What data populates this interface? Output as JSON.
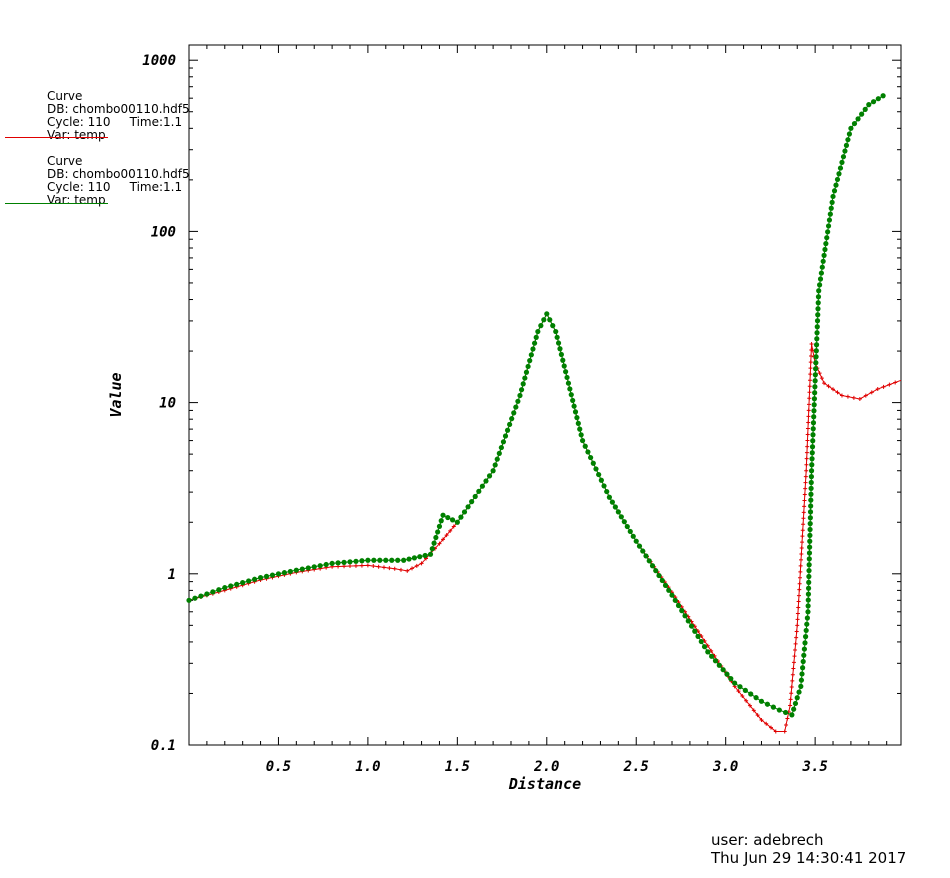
{
  "legend": [
    {
      "name": "Curve",
      "db": "DB: chombo00110.hdf5",
      "cycle": "Cycle: 110",
      "time": "Time:1.1",
      "var": "Var: temp",
      "color": "#e00000"
    },
    {
      "name": "Curve",
      "db": "DB: chombo00110.hdf5",
      "cycle": "Cycle: 110",
      "time": "Time:1.1",
      "var": "Var: temp",
      "color": "#008000"
    }
  ],
  "footer": {
    "user": "user: adebrech",
    "date": "Thu Jun 29 14:30:41 2017"
  },
  "chart_data": {
    "type": "line",
    "xlabel": "Distance",
    "ylabel": "Value",
    "xlim": [
      0.0,
      3.98
    ],
    "ylim": [
      0.1,
      1200
    ],
    "yscale": "log",
    "xticks": [
      0.5,
      1.0,
      1.5,
      2.0,
      2.5,
      3.0,
      3.5
    ],
    "xtick_labels": [
      "0.5",
      "1.0",
      "1.5",
      "2.0",
      "2.5",
      "3.0",
      "3.5"
    ],
    "yticks": [
      0.1,
      1,
      10,
      100,
      1000
    ],
    "ytick_labels": [
      "0.1",
      "1",
      "10",
      "100",
      "1000"
    ],
    "grid": false,
    "series": [
      {
        "color": "#e00000",
        "marker": "cross",
        "x": [
          0.0,
          0.2,
          0.4,
          0.6,
          0.8,
          1.0,
          1.15,
          1.22,
          1.3,
          1.4,
          1.5,
          1.7,
          1.85,
          1.95,
          2.0,
          2.05,
          2.2,
          2.35,
          2.5,
          2.7,
          2.9,
          3.05,
          3.2,
          3.28,
          3.33,
          3.36,
          3.4,
          3.45,
          3.48,
          3.5,
          3.55,
          3.65,
          3.75,
          3.85,
          3.98
        ],
        "y": [
          0.7,
          0.8,
          0.92,
          1.02,
          1.1,
          1.12,
          1.07,
          1.04,
          1.15,
          1.5,
          2.0,
          4.0,
          11,
          26,
          33,
          26,
          6.0,
          2.8,
          1.55,
          0.78,
          0.38,
          0.22,
          0.14,
          0.12,
          0.12,
          0.17,
          0.5,
          4.0,
          22,
          17,
          13,
          11,
          10.5,
          12,
          13.5
        ]
      },
      {
        "color": "#008000",
        "marker": "circle",
        "x": [
          0.0,
          0.2,
          0.4,
          0.6,
          0.8,
          1.0,
          1.2,
          1.35,
          1.42,
          1.5,
          1.7,
          1.85,
          1.95,
          2.0,
          2.05,
          2.2,
          2.35,
          2.5,
          2.7,
          2.9,
          3.05,
          3.2,
          3.3,
          3.37,
          3.42,
          3.46,
          3.48,
          3.52,
          3.6,
          3.7,
          3.8,
          3.88
        ],
        "y": [
          0.7,
          0.83,
          0.95,
          1.05,
          1.15,
          1.2,
          1.2,
          1.3,
          2.2,
          2.0,
          4.0,
          11,
          26,
          33,
          26,
          6.0,
          2.8,
          1.55,
          0.75,
          0.35,
          0.23,
          0.18,
          0.16,
          0.15,
          0.22,
          0.6,
          4.0,
          45,
          160,
          400,
          550,
          620
        ]
      }
    ]
  }
}
